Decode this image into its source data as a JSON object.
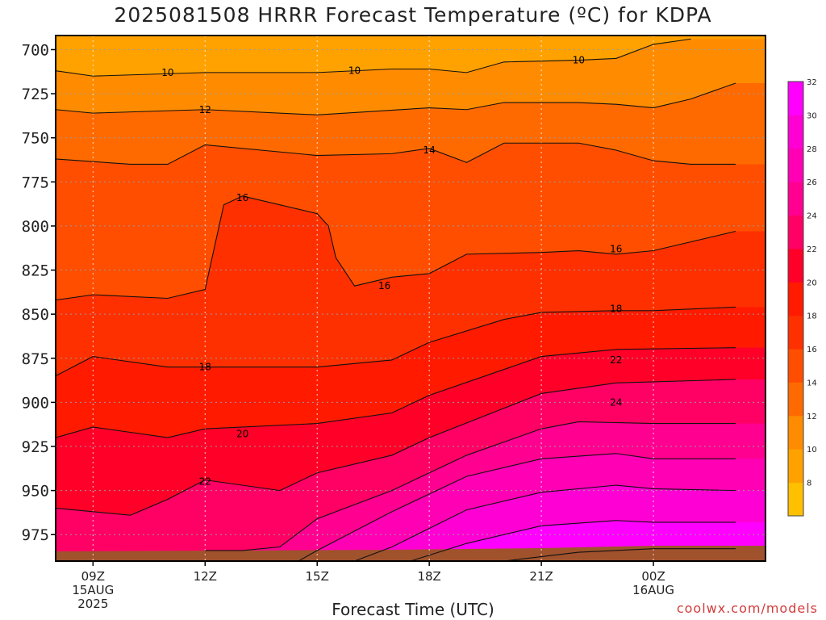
{
  "chart_data": {
    "type": "heatmap",
    "title": "2025081508 HRRR Forecast Temperature (ºC) for KDPA",
    "xlabel": "Forecast Time (UTC)",
    "ylabel": "",
    "y_axis": {
      "type": "pressure",
      "inverted": true,
      "range": [
        990,
        692
      ],
      "ticks": [
        700,
        725,
        750,
        775,
        800,
        825,
        850,
        875,
        900,
        925,
        950,
        975
      ],
      "tick_labels": [
        "700",
        "725",
        "750",
        "775",
        "800",
        "825",
        "850",
        "875",
        "900",
        "925",
        "950",
        "975"
      ]
    },
    "x_axis": {
      "range_hours": [
        -1,
        18
      ],
      "ticks": [
        {
          "hour": 0,
          "lines": [
            "09Z",
            "15AUG",
            "2025"
          ]
        },
        {
          "hour": 3,
          "lines": [
            "12Z"
          ]
        },
        {
          "hour": 6,
          "lines": [
            "15Z"
          ]
        },
        {
          "hour": 9,
          "lines": [
            "18Z"
          ]
        },
        {
          "hour": 12,
          "lines": [
            "21Z"
          ]
        },
        {
          "hour": 15,
          "lines": [
            "00Z",
            "16AUG"
          ]
        }
      ]
    },
    "grid": true,
    "colorbar": {
      "levels": [
        6,
        8,
        10,
        12,
        14,
        16,
        18,
        20,
        22,
        24,
        26,
        28,
        30,
        32,
        34
      ],
      "labels": [
        "8",
        "10",
        "12",
        "14",
        "16",
        "18",
        "20",
        "22",
        "24",
        "26",
        "28",
        "30",
        "32"
      ],
      "colors": [
        "#ffc000",
        "#ffa200",
        "#ff8c00",
        "#ff6a00",
        "#ff4e00",
        "#ff3000",
        "#ff1a00",
        "#ff0028",
        "#ff0064",
        "#ff0090",
        "#ff00b4",
        "#ff00d4",
        "#ff00ff",
        "#ff00ff"
      ]
    },
    "ground_color": "#a0522d",
    "contours": [
      {
        "level": 10,
        "label": "10",
        "points": [
          [
            -1,
            712
          ],
          [
            0,
            715
          ],
          [
            3,
            713
          ],
          [
            6,
            713
          ],
          [
            8,
            711
          ],
          [
            9,
            711
          ],
          [
            10,
            713
          ],
          [
            11,
            707
          ],
          [
            13,
            706
          ],
          [
            14,
            705
          ],
          [
            15,
            697
          ],
          [
            16,
            694
          ]
        ]
      },
      {
        "level": 12,
        "label": "12",
        "points": [
          [
            -1,
            734
          ],
          [
            0,
            736
          ],
          [
            3,
            734
          ],
          [
            6,
            737
          ],
          [
            9,
            733
          ],
          [
            10,
            734
          ],
          [
            11,
            730
          ],
          [
            13,
            730
          ],
          [
            14,
            731
          ],
          [
            15,
            733
          ],
          [
            16,
            728
          ],
          [
            17.2,
            719
          ]
        ]
      },
      {
        "level": 14,
        "label": "14",
        "points": [
          [
            -1,
            762
          ],
          [
            1,
            765
          ],
          [
            2,
            765
          ],
          [
            3,
            754
          ],
          [
            6,
            760
          ],
          [
            8,
            759
          ],
          [
            9,
            756
          ],
          [
            10,
            764
          ],
          [
            11,
            753
          ],
          [
            13,
            753
          ],
          [
            14,
            757
          ],
          [
            15,
            763
          ],
          [
            16,
            765
          ],
          [
            17.2,
            765
          ]
        ]
      },
      {
        "level": 16,
        "label": "16",
        "points": [
          [
            -1,
            842
          ],
          [
            0,
            839
          ],
          [
            2,
            841
          ],
          [
            3,
            836
          ],
          [
            3.5,
            788
          ],
          [
            4,
            783
          ],
          [
            5,
            788
          ],
          [
            6,
            793
          ],
          [
            6.3,
            800
          ],
          [
            6.5,
            818
          ],
          [
            7,
            834
          ],
          [
            8,
            829
          ],
          [
            9,
            827
          ],
          [
            10,
            816
          ],
          [
            12,
            815
          ],
          [
            13,
            814
          ],
          [
            14,
            816
          ],
          [
            15,
            814
          ],
          [
            17.2,
            803
          ]
        ]
      },
      {
        "level": 18,
        "label": "18",
        "points": [
          [
            -1,
            885
          ],
          [
            0,
            874
          ],
          [
            2,
            880
          ],
          [
            3,
            880
          ],
          [
            6,
            880
          ],
          [
            8,
            876
          ],
          [
            9,
            866
          ],
          [
            11,
            853
          ],
          [
            12,
            849
          ],
          [
            14,
            848
          ],
          [
            15,
            848
          ],
          [
            17.2,
            846
          ]
        ]
      },
      {
        "level": 20,
        "label": "20",
        "points": [
          [
            -1,
            920
          ],
          [
            0,
            914
          ],
          [
            2,
            920
          ],
          [
            3,
            915
          ],
          [
            6,
            912
          ],
          [
            8,
            906
          ],
          [
            9,
            896
          ],
          [
            12,
            874
          ],
          [
            14,
            870
          ],
          [
            17.2,
            869
          ]
        ]
      },
      {
        "level": 22,
        "label": "22",
        "points": [
          [
            -1,
            960
          ],
          [
            0,
            962
          ],
          [
            1,
            964
          ],
          [
            2,
            955
          ],
          [
            3,
            944
          ],
          [
            5,
            950
          ],
          [
            6,
            940
          ],
          [
            8,
            930
          ],
          [
            9,
            920
          ],
          [
            12,
            895
          ],
          [
            14,
            889
          ],
          [
            17.2,
            887
          ]
        ]
      },
      {
        "level": 24,
        "label": "24",
        "points": [
          [
            3,
            984
          ],
          [
            4,
            984
          ],
          [
            5,
            982
          ],
          [
            6,
            966
          ],
          [
            8,
            950
          ],
          [
            10,
            930
          ],
          [
            12,
            915
          ],
          [
            13,
            911
          ],
          [
            15,
            912
          ],
          [
            17.2,
            912
          ]
        ]
      },
      {
        "level": 26,
        "label": "26",
        "points": [
          [
            5.5,
            990
          ],
          [
            6,
            984
          ],
          [
            8,
            962
          ],
          [
            10,
            942
          ],
          [
            12,
            932
          ],
          [
            14,
            929
          ],
          [
            15,
            932
          ],
          [
            17.2,
            932
          ]
        ]
      },
      {
        "level": 28,
        "label": "28",
        "points": [
          [
            7,
            990
          ],
          [
            8,
            982
          ],
          [
            10,
            961
          ],
          [
            12,
            951
          ],
          [
            14,
            947
          ],
          [
            15,
            949
          ],
          [
            17.2,
            950
          ]
        ]
      },
      {
        "level": 30,
        "label": "30",
        "points": [
          [
            8.5,
            990
          ],
          [
            10,
            980
          ],
          [
            12,
            970
          ],
          [
            14,
            967
          ],
          [
            15,
            968
          ],
          [
            17.2,
            968
          ]
        ]
      },
      {
        "level": 32,
        "label": "32",
        "points": [
          [
            11,
            990
          ],
          [
            13,
            985
          ],
          [
            15,
            983
          ],
          [
            17.2,
            983
          ]
        ]
      }
    ],
    "contour_labels": [
      {
        "text": "10",
        "x": 2.0,
        "y": 713
      },
      {
        "text": "10",
        "x": 7.0,
        "y": 712
      },
      {
        "text": "10",
        "x": 13.0,
        "y": 706
      },
      {
        "text": "12",
        "x": 3.0,
        "y": 734
      },
      {
        "text": "14",
        "x": 9.0,
        "y": 757
      },
      {
        "text": "16",
        "x": 4.0,
        "y": 784
      },
      {
        "text": "16",
        "x": 7.8,
        "y": 834
      },
      {
        "text": "16",
        "x": 14.0,
        "y": 813
      },
      {
        "text": "18",
        "x": 3.0,
        "y": 880
      },
      {
        "text": "18",
        "x": 14.0,
        "y": 847
      },
      {
        "text": "20",
        "x": 4.0,
        "y": 918
      },
      {
        "text": "22",
        "x": 3.0,
        "y": 945
      },
      {
        "text": "22",
        "x": 14.0,
        "y": 876
      },
      {
        "text": "24",
        "x": 14.0,
        "y": 900
      }
    ]
  },
  "watermark": "coolwx.com/models"
}
